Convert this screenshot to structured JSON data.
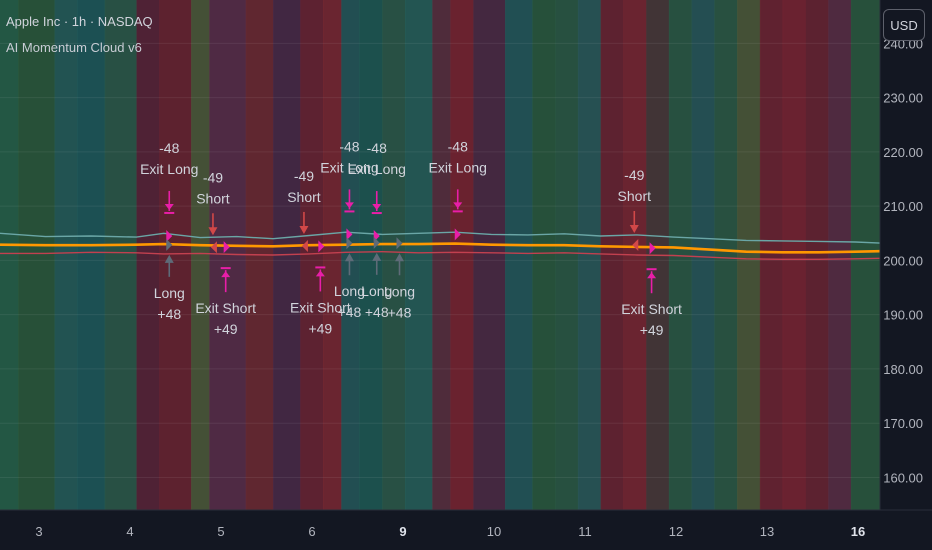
{
  "header": {
    "title": "Apple Inc · 1h · NASDAQ",
    "indicator": "AI Momentum Cloud v6",
    "currency_button": "USD"
  },
  "colors": {
    "background": "#131722",
    "price_line": "#ff9800",
    "upper_band": "#6aa6a6",
    "lower_band": "#c2404f",
    "long_arrow": "#5e6b78",
    "short_arrow": "#d24848",
    "exit_arrow": "#e91ea8",
    "text": "#d1d4dc"
  },
  "chart_data": {
    "type": "line",
    "y_ticks": [
      "240.00",
      "230.00",
      "220.00",
      "210.00",
      "200.00",
      "190.00",
      "180.00",
      "170.00",
      "160.00"
    ],
    "y_range": [
      154,
      248
    ],
    "x_ticks": [
      {
        "label": "3",
        "x": 0.45,
        "bold": false
      },
      {
        "label": "4",
        "x": 1.45,
        "bold": false
      },
      {
        "label": "5",
        "x": 2.45,
        "bold": false
      },
      {
        "label": "6",
        "x": 3.45,
        "bold": false
      },
      {
        "label": "9",
        "x": 4.45,
        "bold": true
      },
      {
        "label": "10",
        "x": 5.45,
        "bold": false
      },
      {
        "label": "11",
        "x": 6.45,
        "bold": false
      },
      {
        "label": "12",
        "x": 7.45,
        "bold": false
      },
      {
        "label": "13",
        "x": 8.45,
        "bold": false
      },
      {
        "label": "16",
        "x": 9.45,
        "bold": true
      }
    ],
    "x_range": [
      0,
      9.67
    ],
    "background_bands": [
      {
        "from": 0.0,
        "to": 0.2,
        "color": "#27634a"
      },
      {
        "from": 0.2,
        "to": 0.6,
        "color": "#2b5a3c"
      },
      {
        "from": 0.6,
        "to": 0.85,
        "color": "#265e5a"
      },
      {
        "from": 0.85,
        "to": 1.15,
        "color": "#1f5a5c"
      },
      {
        "from": 1.15,
        "to": 1.5,
        "color": "#2d5a4a"
      },
      {
        "from": 1.5,
        "to": 1.75,
        "color": "#5a2538"
      },
      {
        "from": 1.75,
        "to": 2.1,
        "color": "#6b2431"
      },
      {
        "from": 2.1,
        "to": 2.3,
        "color": "#4d5a3a"
      },
      {
        "from": 2.3,
        "to": 2.7,
        "color": "#5a2e4a"
      },
      {
        "from": 2.7,
        "to": 3.0,
        "color": "#6e2a33"
      },
      {
        "from": 3.0,
        "to": 3.3,
        "color": "#4a2a48"
      },
      {
        "from": 3.3,
        "to": 3.55,
        "color": "#6b2534"
      },
      {
        "from": 3.55,
        "to": 3.75,
        "color": "#7a2833"
      },
      {
        "from": 3.75,
        "to": 3.95,
        "color": "#26585a"
      },
      {
        "from": 3.95,
        "to": 4.2,
        "color": "#1f5a55"
      },
      {
        "from": 4.2,
        "to": 4.45,
        "color": "#2d5a4a"
      },
      {
        "from": 4.45,
        "to": 4.75,
        "color": "#27605a"
      },
      {
        "from": 4.75,
        "to": 4.95,
        "color": "#5a3040"
      },
      {
        "from": 4.95,
        "to": 5.2,
        "color": "#7a2531"
      },
      {
        "from": 5.2,
        "to": 5.55,
        "color": "#4e2b45"
      },
      {
        "from": 5.55,
        "to": 5.85,
        "color": "#25595c"
      },
      {
        "from": 5.85,
        "to": 6.1,
        "color": "#2a5a3e"
      },
      {
        "from": 6.1,
        "to": 6.35,
        "color": "#2c5a45"
      },
      {
        "from": 6.35,
        "to": 6.6,
        "color": "#2a5a5a"
      },
      {
        "from": 6.6,
        "to": 6.85,
        "color": "#6b2432"
      },
      {
        "from": 6.85,
        "to": 7.1,
        "color": "#7a2733"
      },
      {
        "from": 7.1,
        "to": 7.35,
        "color": "#4a3a3a"
      },
      {
        "from": 7.35,
        "to": 7.6,
        "color": "#2b5a45"
      },
      {
        "from": 7.6,
        "to": 7.85,
        "color": "#28585a"
      },
      {
        "from": 7.85,
        "to": 8.1,
        "color": "#2d5a45"
      },
      {
        "from": 8.1,
        "to": 8.35,
        "color": "#4e5a3a"
      },
      {
        "from": 8.35,
        "to": 8.6,
        "color": "#6e2532"
      },
      {
        "from": 8.6,
        "to": 8.85,
        "color": "#7a2432"
      },
      {
        "from": 8.85,
        "to": 9.1,
        "color": "#6a2432"
      },
      {
        "from": 9.1,
        "to": 9.35,
        "color": "#5a2e45"
      },
      {
        "from": 9.35,
        "to": 9.67,
        "color": "#2c5a40"
      }
    ],
    "series": [
      {
        "key": "upper",
        "x": [
          0,
          0.5,
          1.0,
          1.5,
          1.8,
          2.2,
          2.6,
          3.0,
          3.4,
          3.8,
          4.2,
          4.6,
          5.0,
          5.4,
          5.8,
          6.2,
          6.6,
          7.0,
          7.4,
          7.8,
          8.2,
          8.6,
          9.0,
          9.4,
          9.67
        ],
        "values": [
          205.0,
          204.4,
          204.5,
          204.3,
          205.0,
          204.2,
          204.4,
          204.0,
          204.6,
          205.2,
          204.8,
          205.0,
          205.2,
          204.8,
          204.7,
          204.9,
          204.5,
          204.7,
          204.3,
          204.0,
          203.7,
          203.6,
          203.5,
          203.4,
          203.2
        ]
      },
      {
        "key": "price",
        "x": [
          0,
          0.5,
          1.0,
          1.5,
          1.8,
          2.2,
          2.6,
          3.0,
          3.4,
          3.8,
          4.2,
          4.6,
          5.0,
          5.4,
          5.8,
          6.2,
          6.6,
          7.0,
          7.4,
          7.8,
          8.2,
          8.6,
          9.0,
          9.4,
          9.67
        ],
        "values": [
          202.9,
          202.8,
          202.8,
          202.9,
          203.0,
          202.8,
          202.7,
          202.6,
          202.8,
          202.9,
          203.0,
          203.0,
          203.1,
          202.9,
          202.8,
          202.8,
          202.6,
          202.5,
          202.4,
          202.0,
          201.6,
          201.5,
          201.5,
          201.6,
          201.7
        ]
      },
      {
        "key": "lower",
        "x": [
          0,
          0.5,
          1.0,
          1.5,
          1.8,
          2.2,
          2.6,
          3.0,
          3.4,
          3.8,
          4.2,
          4.6,
          5.0,
          5.4,
          5.8,
          6.2,
          6.6,
          7.0,
          7.4,
          7.8,
          8.2,
          8.6,
          9.0,
          9.4,
          9.67
        ],
        "values": [
          201.3,
          201.3,
          201.5,
          201.4,
          201.2,
          201.3,
          201.1,
          201.0,
          201.2,
          201.5,
          201.6,
          201.4,
          201.5,
          201.4,
          201.3,
          201.4,
          201.2,
          201.0,
          200.9,
          200.6,
          200.3,
          200.2,
          200.2,
          200.3,
          200.4
        ]
      }
    ],
    "signals": [
      {
        "x": 1.86,
        "type": "exit-long",
        "value": "-48",
        "label": "Exit Long"
      },
      {
        "x": 1.86,
        "type": "long",
        "value": "+48",
        "label": "Long"
      },
      {
        "x": 2.34,
        "type": "short",
        "value": "-49",
        "label": "Short"
      },
      {
        "x": 2.48,
        "type": "exit-short",
        "value": "+49",
        "label": "Exit Short"
      },
      {
        "x": 3.34,
        "type": "short",
        "value": "-49",
        "label": "Short"
      },
      {
        "x": 3.52,
        "type": "exit-short",
        "value": "+49",
        "label": "Exit Short"
      },
      {
        "x": 3.84,
        "type": "exit-long",
        "value": "-48",
        "label": "Exit Long"
      },
      {
        "x": 3.84,
        "type": "long",
        "value": "+48",
        "label": "Long"
      },
      {
        "x": 4.14,
        "type": "exit-long",
        "value": "-48",
        "label": "Exit Long"
      },
      {
        "x": 4.14,
        "type": "long",
        "value": "+48",
        "label": "Long"
      },
      {
        "x": 4.39,
        "type": "long",
        "value": "+48",
        "label": "Long"
      },
      {
        "x": 5.03,
        "type": "exit-long",
        "value": "-48",
        "label": "Exit Long"
      },
      {
        "x": 6.97,
        "type": "short",
        "value": "-49",
        "label": "Short"
      },
      {
        "x": 7.16,
        "type": "exit-short",
        "value": "+49",
        "label": "Exit Short"
      }
    ]
  }
}
